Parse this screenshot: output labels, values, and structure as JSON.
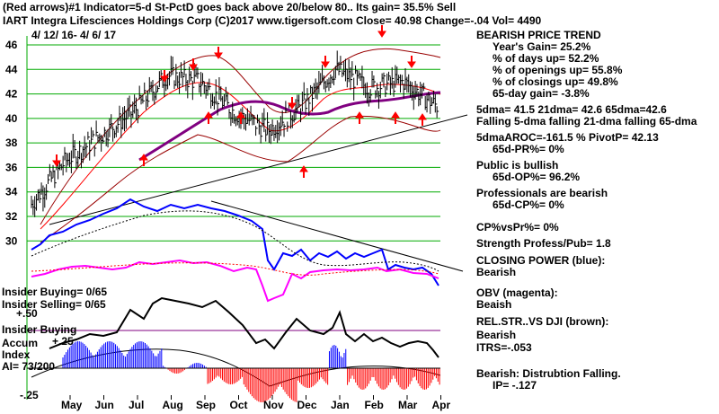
{
  "header": {
    "line1": "(Red arrows)#1 Indicator=5-d St-PctD goes back above 20/below 80.. Its gain= 35.5% Sell",
    "line2": "IART   Integra Lifesciences Holdings Corp  (C)2017 www.tigersoft.com    Close=  40.98  Change=-.04 Vol= 4490",
    "date_range": "4/ 12/ 16-  4/ 6/ 17"
  },
  "right_panel": {
    "title": "BEARISH PRICE TREND",
    "years_gain": "Year's Gain= 25.2%",
    "days_up": "% of days up= 52.2%",
    "openings_up": "% of openings up= 55.8%",
    "closings_up": "% of closings up= 49.8%",
    "day65_gain": "65-day gain= -3.8%",
    "dma_values": "5dma= 41.5  21dma= 42.6  65dma=42.6",
    "dma_trend": "Falling 5-dma  falling 21-dma  falling 65-dma",
    "aroc_pivot": "5dmaAROC=-161.5  %  PivotP= 42.13",
    "pr65": "65d-PR%= 0%",
    "public": "Public is bullish",
    "op65": "65d-OP%= 96.2%",
    "professionals": "Professionals are bearish",
    "cp65": "65d-CP%= 0%",
    "cpvspr": "CP%vsPr%=  0%",
    "strength": "Strength Profess/Pub= 1.8",
    "closing_power_label": "CLOSING POWER (blue):",
    "closing_power_value": "Bearish",
    "obv_label": "OBV (magenta):",
    "obv_value": "Beaish",
    "relstr_label": "REL.STR..VS DJI (brown):",
    "relstr_value": "Bearish",
    "itrs": "ITRS=-.053",
    "bearish_dist": "Bearish: Distrubtion Falling.",
    "ip": "IP= -.127"
  },
  "left_panel": {
    "insider_buying_count": "Insider Buying= 0/65",
    "insider_selling_count": "Insider Selling= 0/65",
    "plus50": "+.50",
    "insider_buying": "Insider Buying",
    "accum": "Accum",
    "plus25": "+.25",
    "index": "Index",
    "ai": "AI= 73/200",
    "minus25": "-.25"
  },
  "chart_data": {
    "type": "line",
    "y_axis_price": {
      "ylim": [
        30,
        47
      ],
      "ticks": [
        "46",
        "44",
        "42",
        "40",
        "38",
        "36",
        "34",
        "32",
        "30"
      ]
    },
    "x_axis": {
      "tick_labels": [
        "May",
        "Jun",
        "Jul",
        "Aug",
        "Sep",
        "Oct",
        "Nov",
        "Dec",
        "Jan",
        "Feb",
        "Mar",
        "Apr"
      ]
    },
    "price_bars": {
      "months": [
        "Apr",
        "May",
        "Jun",
        "Jul",
        "Aug",
        "Sep",
        "Oct",
        "Nov",
        "Dec",
        "Jan",
        "Feb",
        "Mar",
        "Apr"
      ],
      "close": [
        33.0,
        36.5,
        38.5,
        40.5,
        43.5,
        43.0,
        40.5,
        39.0,
        41.0,
        44.0,
        42.5,
        43.0,
        41.0
      ]
    },
    "series": [
      {
        "name": "closing power (blue)",
        "color": "#0000ff"
      },
      {
        "name": "OBV (magenta)",
        "color": "#ff00ff"
      },
      {
        "name": "REL.STR..VS DJI (brown)",
        "color": "#993300"
      }
    ],
    "colors": {
      "price_bars": "#000000",
      "ma21": "#ff0000",
      "ma65": "#800080",
      "bands": "#990000",
      "red_arrows": "#ff0000",
      "grid": "#00aa00",
      "insider_line": "#800080",
      "accum_positive": "#0000ff",
      "accum_negative": "#ff0000"
    }
  }
}
